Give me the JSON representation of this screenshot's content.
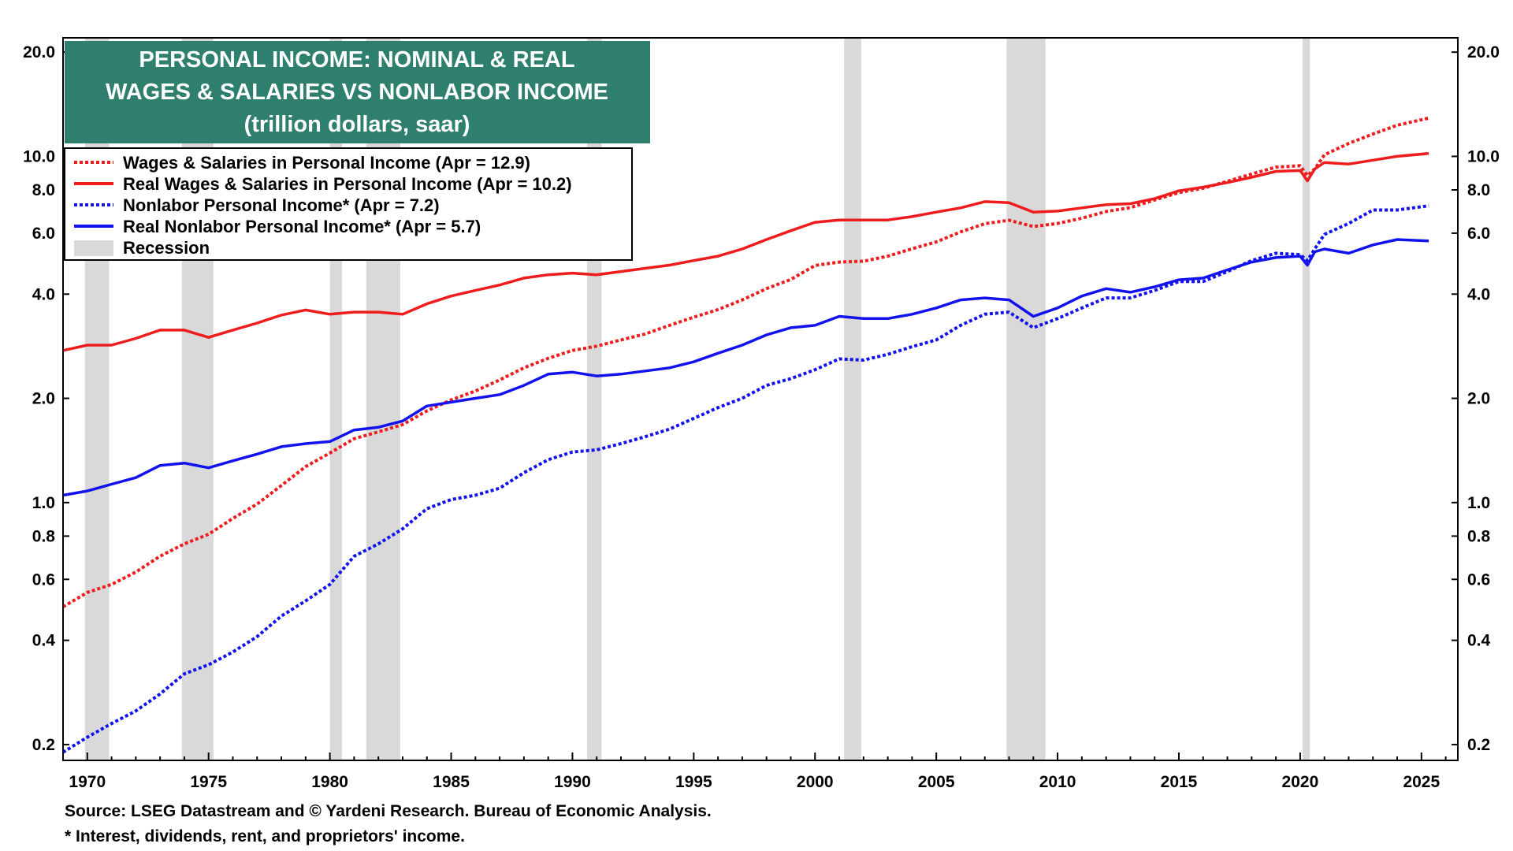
{
  "chart_data": {
    "type": "line",
    "title": "PERSONAL INCOME: NOMINAL & REAL",
    "subtitle": "WAGES & SALARIES VS NONLABOR INCOME",
    "units": "(trillion dollars, saar)",
    "y_scale": "log",
    "ylim": [
      0.18,
      22
    ],
    "xlim": [
      1969.0,
      2026.5
    ],
    "y_ticks": [
      "0.2",
      "0.4",
      "0.6",
      "0.8",
      "1.0",
      "2.0",
      "4.0",
      "6.0",
      "8.0",
      "10.0",
      "20.0"
    ],
    "x_ticks": [
      "1970",
      "1975",
      "1980",
      "1985",
      "1990",
      "1995",
      "2000",
      "2005",
      "2010",
      "2015",
      "2020",
      "2025"
    ],
    "recessions": [
      [
        1969.9,
        1970.9
      ],
      [
        1973.9,
        1975.2
      ],
      [
        1980.0,
        1980.5
      ],
      [
        1981.5,
        1982.9
      ],
      [
        1990.6,
        1991.2
      ],
      [
        2001.2,
        2001.9
      ],
      [
        2007.9,
        2009.5
      ],
      [
        2020.1,
        2020.4
      ]
    ],
    "series": [
      {
        "name": "Wages & Salaries in Personal Income (Apr = 12.9)",
        "color": "#ee1c1c",
        "style": "dotted",
        "x": [
          1969.0,
          1970,
          1971,
          1972,
          1973,
          1974,
          1975,
          1976,
          1977,
          1978,
          1979,
          1980,
          1981,
          1982,
          1983,
          1984,
          1985,
          1986,
          1987,
          1988,
          1989,
          1990,
          1991,
          1992,
          1993,
          1994,
          1995,
          1996,
          1997,
          1998,
          1999,
          2000,
          2001,
          2002,
          2003,
          2004,
          2005,
          2006,
          2007,
          2008,
          2009,
          2010,
          2011,
          2012,
          2013,
          2014,
          2015,
          2016,
          2017,
          2018,
          2019,
          2020.0,
          2020.3,
          2020.6,
          2021,
          2022,
          2023,
          2024,
          2025.3
        ],
        "values": [
          0.5,
          0.55,
          0.58,
          0.63,
          0.7,
          0.76,
          0.81,
          0.9,
          0.99,
          1.12,
          1.27,
          1.39,
          1.53,
          1.6,
          1.68,
          1.84,
          1.98,
          2.1,
          2.26,
          2.45,
          2.61,
          2.75,
          2.83,
          2.95,
          3.07,
          3.25,
          3.43,
          3.61,
          3.85,
          4.15,
          4.41,
          4.84,
          4.95,
          4.98,
          5.15,
          5.41,
          5.66,
          6.05,
          6.39,
          6.54,
          6.27,
          6.4,
          6.63,
          6.93,
          7.11,
          7.48,
          7.86,
          8.09,
          8.47,
          8.89,
          9.31,
          9.4,
          8.8,
          9.2,
          10.1,
          10.9,
          11.6,
          12.3,
          12.9
        ]
      },
      {
        "name": "Real Wages & Salaries in Personal Income (Apr = 10.2)",
        "color": "#ee1c1c",
        "style": "solid",
        "x": [
          1969.0,
          1970,
          1971,
          1972,
          1973,
          1974,
          1975,
          1976,
          1977,
          1978,
          1979,
          1980,
          1981,
          1982,
          1983,
          1984,
          1985,
          1986,
          1987,
          1988,
          1989,
          1990,
          1991,
          1992,
          1993,
          1994,
          1995,
          1996,
          1997,
          1998,
          1999,
          2000,
          2001,
          2002,
          2003,
          2004,
          2005,
          2006,
          2007,
          2008,
          2009,
          2010,
          2011,
          2012,
          2013,
          2014,
          2015,
          2016,
          2017,
          2018,
          2019,
          2020.0,
          2020.3,
          2020.6,
          2021,
          2022,
          2023,
          2024,
          2025.3
        ],
        "values": [
          2.75,
          2.85,
          2.85,
          2.98,
          3.15,
          3.15,
          3.0,
          3.15,
          3.3,
          3.48,
          3.6,
          3.5,
          3.55,
          3.55,
          3.5,
          3.75,
          3.95,
          4.1,
          4.25,
          4.45,
          4.55,
          4.6,
          4.55,
          4.65,
          4.75,
          4.85,
          5.0,
          5.15,
          5.4,
          5.75,
          6.1,
          6.45,
          6.55,
          6.55,
          6.55,
          6.7,
          6.9,
          7.1,
          7.4,
          7.35,
          6.9,
          6.95,
          7.1,
          7.25,
          7.3,
          7.55,
          7.95,
          8.15,
          8.4,
          8.7,
          9.05,
          9.1,
          8.5,
          9.2,
          9.6,
          9.5,
          9.75,
          10.0,
          10.2
        ]
      },
      {
        "name": "Nonlabor Personal Income* (Apr = 7.2)",
        "color": "#1212ee",
        "style": "dotted",
        "x": [
          1969.0,
          1970,
          1971,
          1972,
          1973,
          1974,
          1975,
          1976,
          1977,
          1978,
          1979,
          1980,
          1981,
          1982,
          1983,
          1984,
          1985,
          1986,
          1987,
          1988,
          1989,
          1990,
          1991,
          1992,
          1993,
          1994,
          1995,
          1996,
          1997,
          1998,
          1999,
          2000,
          2001,
          2002,
          2003,
          2004,
          2005,
          2006,
          2007,
          2008,
          2009,
          2010,
          2011,
          2012,
          2013,
          2014,
          2015,
          2016,
          2017,
          2018,
          2019,
          2020.0,
          2020.3,
          2020.6,
          2021,
          2022,
          2023,
          2024,
          2025.3
        ],
        "values": [
          0.19,
          0.21,
          0.23,
          0.25,
          0.28,
          0.32,
          0.34,
          0.37,
          0.41,
          0.47,
          0.52,
          0.58,
          0.7,
          0.76,
          0.84,
          0.96,
          1.02,
          1.05,
          1.1,
          1.22,
          1.33,
          1.4,
          1.42,
          1.48,
          1.55,
          1.63,
          1.75,
          1.88,
          2.0,
          2.18,
          2.28,
          2.42,
          2.6,
          2.58,
          2.68,
          2.82,
          2.95,
          3.25,
          3.5,
          3.55,
          3.2,
          3.4,
          3.65,
          3.9,
          3.9,
          4.1,
          4.35,
          4.35,
          4.65,
          5.0,
          5.25,
          5.2,
          5.0,
          5.4,
          5.95,
          6.4,
          7.0,
          7.0,
          7.2
        ]
      },
      {
        "name": "Real Nonlabor Personal Income* (Apr = 5.7)",
        "color": "#1212ee",
        "style": "solid",
        "x": [
          1969.0,
          1970,
          1971,
          1972,
          1973,
          1974,
          1975,
          1976,
          1977,
          1978,
          1979,
          1980,
          1981,
          1982,
          1983,
          1984,
          1985,
          1986,
          1987,
          1988,
          1989,
          1990,
          1991,
          1992,
          1993,
          1994,
          1995,
          1996,
          1997,
          1998,
          1999,
          2000,
          2001,
          2002,
          2003,
          2004,
          2005,
          2006,
          2007,
          2008,
          2009,
          2010,
          2011,
          2012,
          2013,
          2014,
          2015,
          2016,
          2017,
          2018,
          2019,
          2020.0,
          2020.3,
          2020.6,
          2021,
          2022,
          2023,
          2024,
          2025.3
        ],
        "values": [
          1.05,
          1.08,
          1.13,
          1.18,
          1.28,
          1.3,
          1.26,
          1.32,
          1.38,
          1.45,
          1.48,
          1.5,
          1.62,
          1.65,
          1.72,
          1.9,
          1.95,
          2.0,
          2.05,
          2.18,
          2.35,
          2.38,
          2.32,
          2.35,
          2.4,
          2.45,
          2.55,
          2.7,
          2.85,
          3.05,
          3.2,
          3.25,
          3.45,
          3.4,
          3.4,
          3.5,
          3.65,
          3.85,
          3.9,
          3.85,
          3.45,
          3.65,
          3.95,
          4.15,
          4.05,
          4.2,
          4.4,
          4.45,
          4.7,
          4.95,
          5.1,
          5.15,
          4.85,
          5.3,
          5.4,
          5.25,
          5.55,
          5.75,
          5.7
        ]
      }
    ],
    "legend": {
      "placement": "top-left",
      "items": [
        {
          "label": "Wages & Salaries in Personal Income (Apr = 12.9)",
          "color": "#ee1c1c",
          "style": "dotted"
        },
        {
          "label": "Real Wages & Salaries in Personal Income (Apr = 10.2)",
          "color": "#ee1c1c",
          "style": "solid"
        },
        {
          "label": "Nonlabor Personal Income* (Apr = 7.2)",
          "color": "#1212ee",
          "style": "dotted"
        },
        {
          "label": "Real Nonlabor Personal Income* (Apr = 5.7)",
          "color": "#1212ee",
          "style": "solid"
        },
        {
          "label": "Recession",
          "color": "#d9d9d9",
          "style": "box"
        }
      ]
    }
  },
  "title_box_color": "#2f7f6f",
  "recession_color": "#d9d9d9",
  "footnotes": {
    "source": "Source: LSEG Datastream and © Yardeni Research. Bureau of Economic Analysis.",
    "note": "* Interest, dividends, rent, and proprietors' income."
  }
}
